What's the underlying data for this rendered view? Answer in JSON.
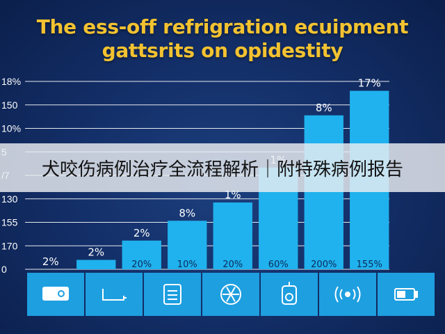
{
  "chart_data": {
    "type": "bar",
    "title_lines": [
      "The ess-off refrigration ecuipment",
      "gattsrits on opidestity"
    ],
    "y_tick_labels": [
      "0",
      "170",
      "155",
      "130",
      "/7",
      "5",
      "10%",
      "150",
      "18%"
    ],
    "categories": [
      "",
      "",
      "",
      "",
      "",
      "",
      "",
      ""
    ],
    "values": [
      0,
      1.8,
      5.5,
      9.3,
      12.8,
      19.5,
      29.5,
      34.2
    ],
    "value_labels": [
      "2%",
      "2%",
      "2%",
      "8%",
      "1%",
      "1%",
      "8%",
      "17%"
    ],
    "inner_labels": [
      "",
      "",
      "20%",
      "10%",
      "20%",
      "60%",
      "200%",
      "155%"
    ],
    "ylim": [
      0,
      36
    ],
    "grid": true,
    "legend": "none"
  },
  "icons": [
    "projector-icon",
    "display-stand-icon",
    "control-panel-icon",
    "fan-icon",
    "thermostat-icon",
    "sensor-wave-icon",
    "battery-icon"
  ],
  "colors": {
    "bar": "#1fb2ee",
    "title": "#f2c230",
    "icon_tile": "#1e9fe0",
    "grid": "#ffffff",
    "background": "#14306a"
  },
  "banner": {
    "text": "犬咬伤病例治疗全流程解析｜附特殊病例报告"
  }
}
